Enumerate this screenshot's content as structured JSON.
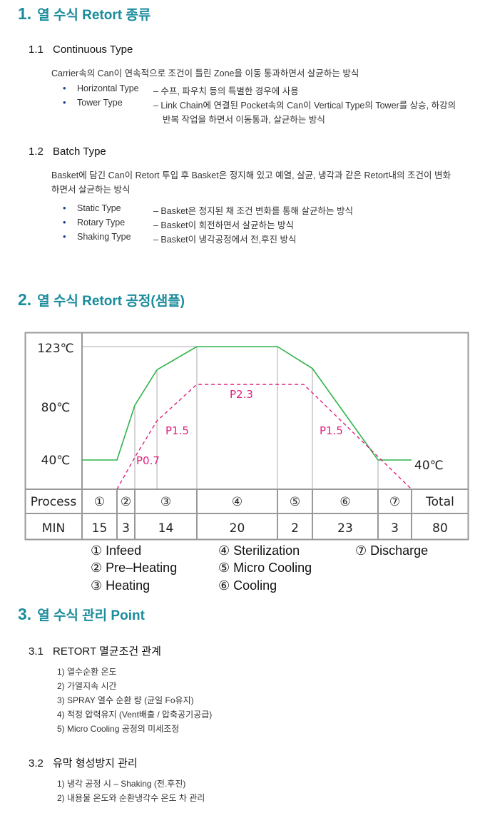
{
  "section1": {
    "number": "1.",
    "title": "열 수식 Retort 종류",
    "sub1": {
      "number": "1.1",
      "title": "Continuous Type",
      "desc": "Carrier속의 Can이 연속적으로 조건이 틀린 Zone을 이동 통과하면서 살균하는 방식",
      "items": [
        {
          "label": "Horizontal Type",
          "desc": "– 수프,  파우치 등의 특별한 경우에 사용"
        },
        {
          "label": "Tower Type",
          "desc": "– Link Chain에 연결된 Pocket속의 Can이 Vertical Type의 Tower를 상승, 하강의",
          "desc2": "반복 작업을 하면서 이동통과, 살균하는 방식"
        }
      ]
    },
    "sub2": {
      "number": "1.2",
      "title": "Batch Type",
      "desc": "Basket에 담긴 Can이 Retort 투입 후 Basket은 정지해 있고 예열, 살균, 냉각과 같은 Retort내의 조건이 변화",
      "desc2": "하면서  살균하는 방식",
      "items": [
        {
          "label": "Static Type",
          "desc": "–  Basket은 정지된 채 조건 변화를 통해 살균하는 방식"
        },
        {
          "label": "Rotary Type",
          "desc": "–  Basket이 회전하면서 살균하는 방식"
        },
        {
          "label": "Shaking Type",
          "desc": "–  Basket이 냉각공정에서 전,후진 방식"
        }
      ]
    }
  },
  "section2": {
    "number": "2.",
    "title": "열 수식 Retort 공정(샘플)"
  },
  "chart_data": {
    "type": "line",
    "y_ticks": [
      "123℃",
      "80℃",
      "40℃"
    ],
    "end_label": "40℃",
    "colors": {
      "temperature": "#2db34a",
      "pressure": "#e0207f",
      "grid": "#999999"
    },
    "x_unit": "MIN (cumulative)",
    "temperature": {
      "x": [
        0,
        15,
        18,
        23,
        32,
        52,
        54,
        77,
        80
      ],
      "y": [
        40,
        40,
        80,
        106,
        123,
        123,
        107,
        40,
        40
      ]
    },
    "pressure": {
      "style": "dashed",
      "x": [
        15,
        18,
        23,
        32,
        53.5,
        80
      ],
      "y": [
        0,
        0.7,
        1.5,
        2.3,
        2.3,
        0
      ]
    },
    "pressure_labels": [
      "P0.7",
      "P1.5",
      "P2.3",
      "P1.5"
    ],
    "table": {
      "row_headers": [
        "Process",
        "MIN"
      ],
      "processes": [
        "①",
        "②",
        "③",
        "④",
        "⑤",
        "⑥",
        "⑦"
      ],
      "minutes": [
        15,
        3,
        14,
        20,
        2,
        23,
        3
      ],
      "total_label": "Total",
      "total": 80
    }
  },
  "legend": [
    "① Infeed",
    "② Pre–Heating",
    "③ Heating",
    "④ Sterilization",
    "⑤ Micro Cooling",
    "⑥ Cooling",
    "⑦ Discharge"
  ],
  "section3": {
    "number": "3.",
    "title": "열 수식 관리 Point",
    "sub1": {
      "number": "3.1",
      "title": "RETORT 멸균조건 관계",
      "items": [
        "1) 열수순환 온도",
        "2) 가열지속 시간",
        "3) SPRAY 열수 순환 량 (균일 Fo유지)",
        "4) 적정 압력유지 (Vent배출 / 압축공기공급)",
        "5) Micro Cooling 공정의 미세조정"
      ]
    },
    "sub2": {
      "number": "3.2",
      "title": "유막 형성방지 관리",
      "items": [
        "1) 냉각 공정 시 – Shaking (전.후진)",
        "2) 내용물 온도와 순환냉각수 온도 차 관리"
      ]
    }
  }
}
